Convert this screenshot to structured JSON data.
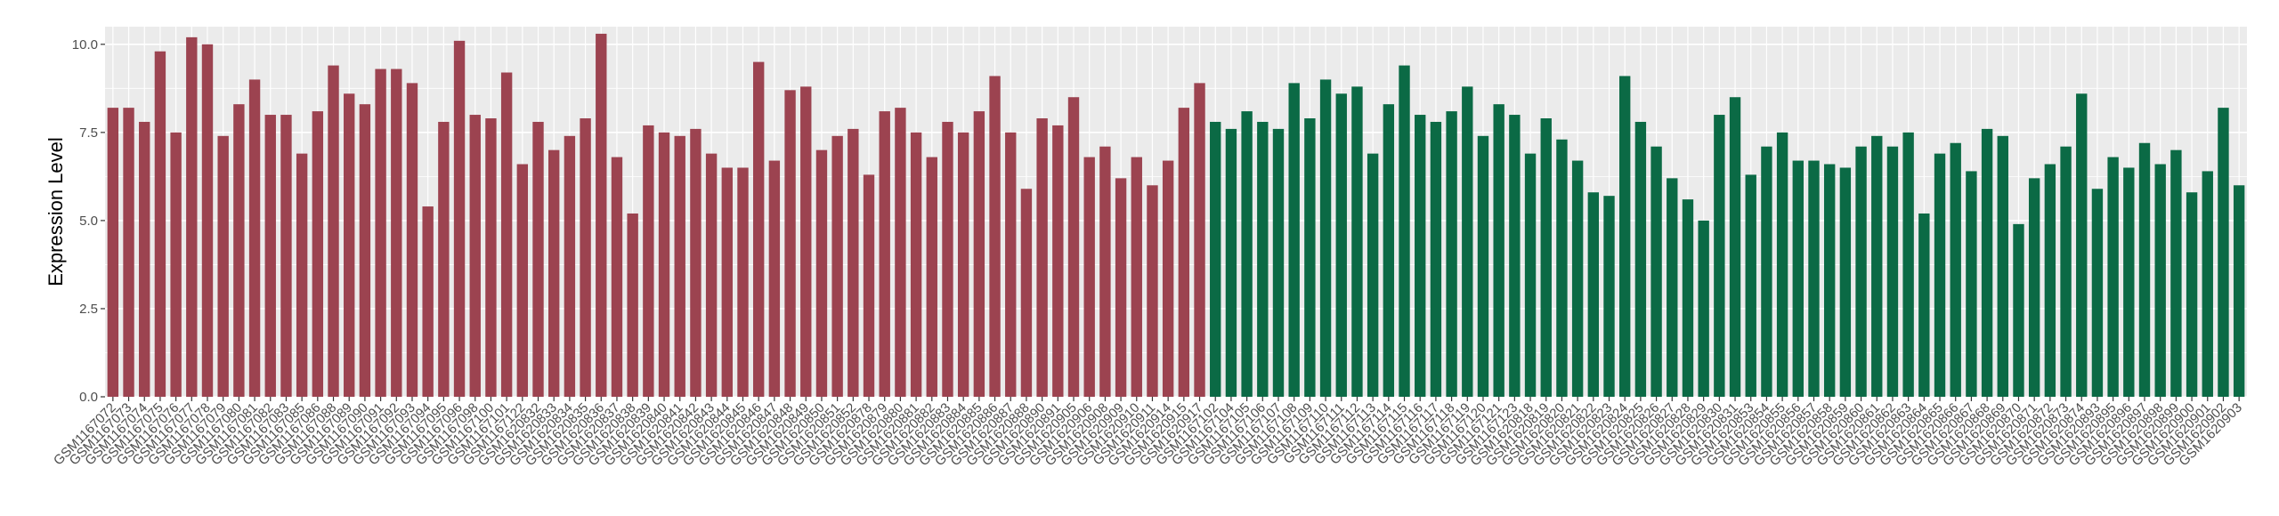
{
  "chart_data": {
    "type": "bar",
    "title": "",
    "xlabel": "",
    "ylabel": "Expression Level",
    "ylim": [
      0,
      10.5
    ],
    "yticks": [
      0.0,
      2.5,
      5.0,
      7.5,
      10.0
    ],
    "ytick_labels": [
      "0.0",
      "2.5",
      "5.0",
      "7.5",
      "10.0"
    ],
    "grid": true,
    "legend": "none",
    "colors": {
      "group_a": "#9c4350",
      "group_b": "#0b6a45",
      "panel_bg": "#ebebeb",
      "grid": "#ffffff"
    },
    "categories": [
      "GSM1167072",
      "GSM1167073",
      "GSM1167074",
      "GSM1167075",
      "GSM1167076",
      "GSM1167077",
      "GSM1167078",
      "GSM1167079",
      "GSM1167080",
      "GSM1167081",
      "GSM1167082",
      "GSM1167083",
      "GSM1167085",
      "GSM1167086",
      "GSM1167088",
      "GSM1167089",
      "GSM1167090",
      "GSM1167091",
      "GSM1167092",
      "GSM1167093",
      "GSM1167094",
      "GSM1167095",
      "GSM1167096",
      "GSM1167098",
      "GSM1167100",
      "GSM1167101",
      "GSM1167122",
      "GSM1620832",
      "GSM1620833",
      "GSM1620834",
      "GSM1620835",
      "GSM1620836",
      "GSM1620837",
      "GSM1620838",
      "GSM1620839",
      "GSM1620840",
      "GSM1620841",
      "GSM1620842",
      "GSM1620843",
      "GSM1620844",
      "GSM1620845",
      "GSM1620846",
      "GSM1620847",
      "GSM1620848",
      "GSM1620849",
      "GSM1620850",
      "GSM1620851",
      "GSM1620852",
      "GSM1620878",
      "GSM1620879",
      "GSM1620880",
      "GSM1620881",
      "GSM1620882",
      "GSM1620883",
      "GSM1620884",
      "GSM1620885",
      "GSM1620886",
      "GSM1620887",
      "GSM1620888",
      "GSM1620890",
      "GSM1620891",
      "GSM1620905",
      "GSM1620906",
      "GSM1620908",
      "GSM1620909",
      "GSM1620910",
      "GSM1620911",
      "GSM1620914",
      "GSM1620915",
      "GSM1620917",
      "GSM1167102",
      "GSM1167104",
      "GSM1167105",
      "GSM1167106",
      "GSM1167107",
      "GSM1167108",
      "GSM1167109",
      "GSM1167110",
      "GSM1167111",
      "GSM1167112",
      "GSM1167113",
      "GSM1167114",
      "GSM1167115",
      "GSM1167116",
      "GSM1167117",
      "GSM1167118",
      "GSM1167119",
      "GSM1167120",
      "GSM1167121",
      "GSM1167123",
      "GSM1620818",
      "GSM1620819",
      "GSM1620820",
      "GSM1620821",
      "GSM1620822",
      "GSM1620823",
      "GSM1620824",
      "GSM1620825",
      "GSM1620826",
      "GSM1620827",
      "GSM1620828",
      "GSM1620829",
      "GSM1620830",
      "GSM1620831",
      "GSM1620853",
      "GSM1620854",
      "GSM1620855",
      "GSM1620856",
      "GSM1620857",
      "GSM1620858",
      "GSM1620859",
      "GSM1620860",
      "GSM1620861",
      "GSM1620862",
      "GSM1620863",
      "GSM1620864",
      "GSM1620865",
      "GSM1620866",
      "GSM1620867",
      "GSM1620868",
      "GSM1620869",
      "GSM1620870",
      "GSM1620871",
      "GSM1620872",
      "GSM1620873",
      "GSM1620874",
      "GSM1620893",
      "GSM1620895",
      "GSM1620896",
      "GSM1620897",
      "GSM1620898",
      "GSM1620899",
      "GSM1620900",
      "GSM1620901",
      "GSM1620902",
      "GSM1620903"
    ],
    "group_a_count": 70,
    "values": [
      8.2,
      8.2,
      7.8,
      9.8,
      7.5,
      10.2,
      10.0,
      7.4,
      8.3,
      9.0,
      8.0,
      8.0,
      6.9,
      8.1,
      9.4,
      8.6,
      8.3,
      9.3,
      9.3,
      8.9,
      5.4,
      7.8,
      10.1,
      8.0,
      7.9,
      9.2,
      6.6,
      7.8,
      7.0,
      7.4,
      7.9,
      10.3,
      6.8,
      5.2,
      7.7,
      7.5,
      7.4,
      7.6,
      6.9,
      6.5,
      6.5,
      9.5,
      6.7,
      8.7,
      8.8,
      7.0,
      7.4,
      7.6,
      6.3,
      8.1,
      8.2,
      7.5,
      6.8,
      7.8,
      7.5,
      8.1,
      9.1,
      7.5,
      5.9,
      7.9,
      7.7,
      8.5,
      6.8,
      7.1,
      6.2,
      6.8,
      6.0,
      6.7,
      8.2,
      8.9,
      7.8,
      7.6,
      8.1,
      7.8,
      7.6,
      8.9,
      7.9,
      9.0,
      8.6,
      8.8,
      6.9,
      8.3,
      9.4,
      8.0,
      7.8,
      8.1,
      8.8,
      7.4,
      8.3,
      8.0,
      6.9,
      7.9,
      7.3,
      6.7,
      5.8,
      5.7,
      9.1,
      7.8,
      7.1,
      6.2,
      5.6,
      5.0,
      8.0,
      8.5,
      6.3,
      7.1,
      7.5,
      6.7,
      6.7,
      6.6,
      6.5,
      7.1,
      7.4,
      7.1,
      7.5,
      5.2,
      6.9,
      7.2,
      6.4,
      7.6,
      7.4,
      4.9,
      6.2,
      6.6,
      7.1,
      8.6,
      5.9,
      6.8,
      6.5,
      7.2,
      6.6,
      7.0,
      5.8,
      6.4,
      8.2,
      6.0
    ]
  }
}
